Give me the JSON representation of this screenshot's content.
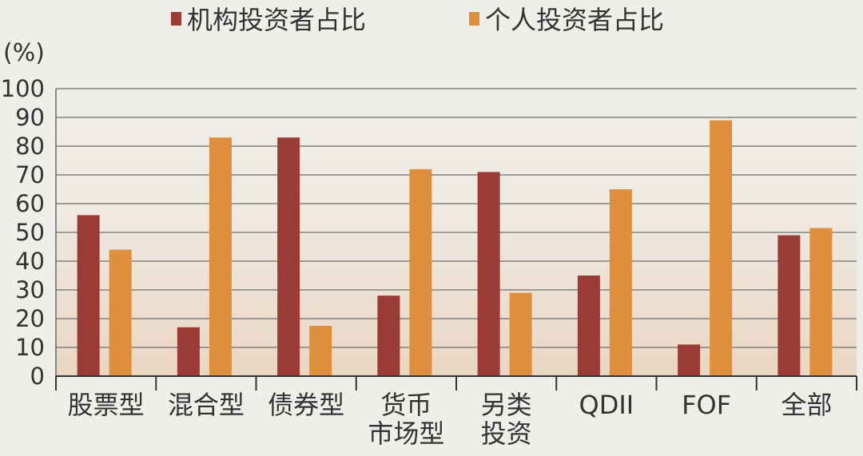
{
  "chart_data": {
    "type": "bar",
    "y_unit": "(%)",
    "ylim": [
      0,
      100
    ],
    "yticks": [
      0,
      10,
      20,
      30,
      40,
      50,
      60,
      70,
      80,
      90,
      100
    ],
    "grid": true,
    "legend_position": "top",
    "categories": [
      [
        "股票型"
      ],
      [
        "混合型"
      ],
      [
        "债券型"
      ],
      [
        "货币",
        "市场型"
      ],
      [
        "另类",
        "投资"
      ],
      [
        "QDII"
      ],
      [
        "FOF"
      ],
      [
        "全部"
      ]
    ],
    "series": [
      {
        "name": "机构投资者占比",
        "color": "#9b3b35",
        "values": [
          56,
          17,
          83,
          28,
          71,
          35,
          11,
          49
        ]
      },
      {
        "name": "个人投资者占比",
        "color": "#dd8f3e",
        "values": [
          44,
          83,
          17.5,
          72,
          29,
          65,
          89,
          51.5
        ]
      }
    ]
  }
}
